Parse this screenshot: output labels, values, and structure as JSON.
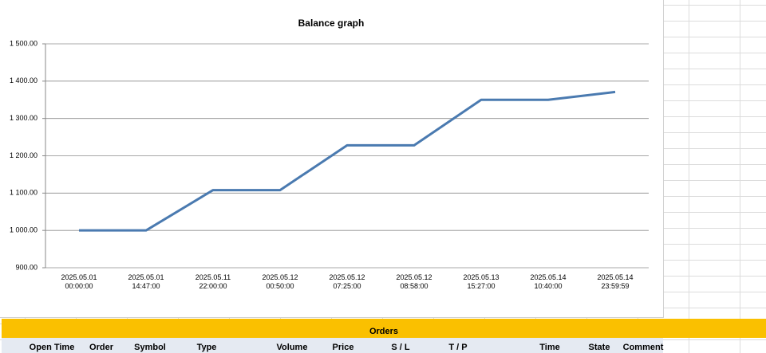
{
  "chart_data": {
    "type": "line",
    "title": "Balance graph",
    "categories": [
      "2025.05.01 00:00:00",
      "2025.05.01 14:47:00",
      "2025.05.11 22:00:00",
      "2025.05.12 00:50:00",
      "2025.05.12 07:25:00",
      "2025.05.12 08:58:00",
      "2025.05.13 15:27:00",
      "2025.05.14 10:40:00",
      "2025.05.14 23:59:59"
    ],
    "values": [
      1000,
      1000,
      1108,
      1108,
      1228,
      1228,
      1350,
      1350,
      1371
    ],
    "color": "#4a7ab0",
    "ylim": [
      900,
      1500
    ],
    "yticks": [
      {
        "value": 900,
        "label": "900.00"
      },
      {
        "value": 1000,
        "label": "1 000.00"
      },
      {
        "value": 1100,
        "label": "1 100.00"
      },
      {
        "value": 1200,
        "label": "1 200.00"
      },
      {
        "value": 1300,
        "label": "1 300.00"
      },
      {
        "value": 1400,
        "label": "1 400.00"
      },
      {
        "value": 1500,
        "label": "1 500.00"
      }
    ],
    "grid": true
  },
  "orders": {
    "title": "Orders",
    "columns": [
      "Open Time",
      "Order",
      "Symbol",
      "Type",
      "Volume",
      "Price",
      "S / L",
      "T / P",
      "Time",
      "State",
      "Comment"
    ]
  }
}
